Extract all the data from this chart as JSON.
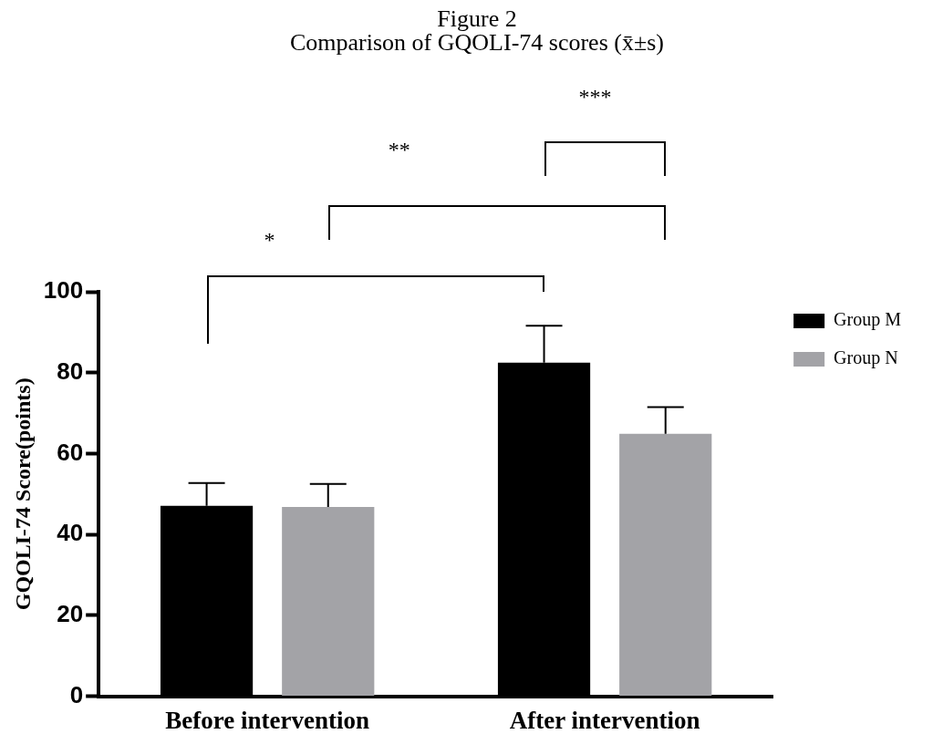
{
  "chart_data": {
    "type": "bar",
    "title": "Figure 2",
    "subtitle": "Comparison of GQOLI-74 scores (x̄±s)",
    "ylabel": "GQOLI-74 Score(points)",
    "categories": [
      "Before intervention",
      "After intervention"
    ],
    "series": [
      {
        "name": "Group M",
        "color": "#000000",
        "values": [
          47.1,
          82.5
        ],
        "errors": [
          5.6,
          9.1
        ]
      },
      {
        "name": "Group N",
        "color": "#a3a3a7",
        "values": [
          46.8,
          64.9
        ],
        "errors": [
          5.7,
          6.6
        ]
      }
    ],
    "ylim": [
      0,
      100
    ],
    "yticks": [
      0,
      20,
      40,
      60,
      80,
      100
    ],
    "grid": false,
    "legend": "right",
    "annotations": [
      "*",
      "**",
      "***"
    ]
  }
}
